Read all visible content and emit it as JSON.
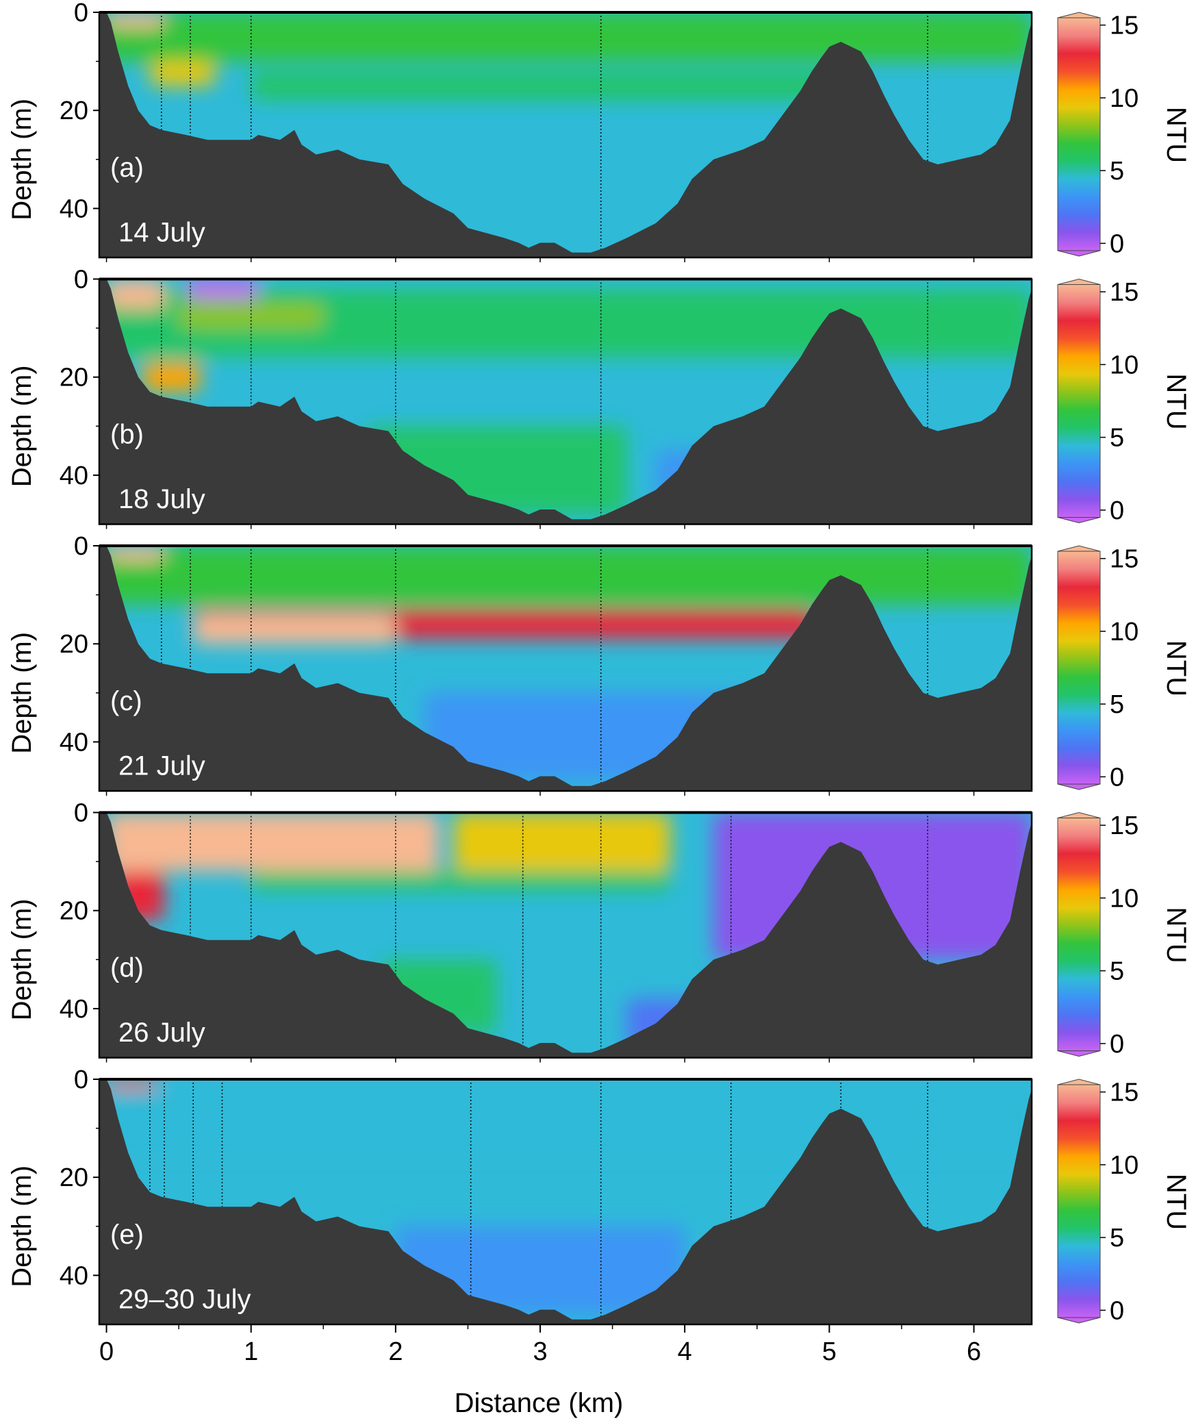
{
  "chart_data": {
    "type": "heatmap",
    "description_of_panels": "Five stacked depth–distance transect sections of turbidity with bathymetry",
    "xlabel": "Distance (km)",
    "ylabel": "Depth (m)",
    "colorbar_label": "NTU",
    "x_ticks": [
      0,
      1,
      2,
      3,
      4,
      5,
      6
    ],
    "y_ticks": [
      0,
      20,
      40
    ],
    "colorbar_ticks": [
      0,
      5,
      10,
      15
    ],
    "xlim": [
      -0.05,
      6.4
    ],
    "ylim": [
      0,
      50
    ],
    "clim": [
      -0.5,
      15.5
    ],
    "colormap": [
      "#c764f4",
      "#8a55ec",
      "#4f74f4",
      "#3c95f5",
      "#2fbad8",
      "#22c46a",
      "#33c43d",
      "#8fc41a",
      "#e8c80a",
      "#ffa500",
      "#f4502c",
      "#e8283a",
      "#f28080",
      "#f7b892"
    ],
    "bathymetry": {
      "distance_km": [
        0,
        0.03,
        0.08,
        0.15,
        0.22,
        0.3,
        0.38,
        0.55,
        0.7,
        0.85,
        1.0,
        1.05,
        1.2,
        1.3,
        1.35,
        1.45,
        1.6,
        1.75,
        1.95,
        2.05,
        2.2,
        2.4,
        2.5,
        2.75,
        2.85,
        2.92,
        3.0,
        3.1,
        3.22,
        3.35,
        3.45,
        3.6,
        3.8,
        3.95,
        4.05,
        4.2,
        4.4,
        4.55,
        4.7,
        4.8,
        4.88,
        4.95,
        5.0,
        5.08,
        5.15,
        5.22,
        5.3,
        5.38,
        5.45,
        5.55,
        5.65,
        5.75,
        5.9,
        6.05,
        6.15,
        6.25,
        6.32,
        6.38,
        6.4
      ],
      "depth_m": [
        0,
        2,
        8,
        15,
        20,
        23,
        24,
        25,
        26,
        26,
        26,
        25,
        26,
        24,
        27,
        29,
        28,
        30,
        31,
        35,
        38,
        41,
        44,
        46,
        47,
        48,
        47,
        47,
        49,
        49,
        48,
        46,
        43,
        39,
        34,
        30,
        28,
        26,
        20,
        16,
        12,
        9,
        7,
        6,
        7,
        8,
        12,
        17,
        21,
        26,
        30,
        31,
        30,
        29,
        27,
        22,
        12,
        4,
        2
      ]
    },
    "panels": [
      {
        "tag": "(a)",
        "date": "14 July",
        "background_ntu": 4.5,
        "profile_stations_km": [
          0.38,
          0.58,
          1.0,
          3.42,
          5.68
        ],
        "features": [
          {
            "x": [
              -0.05,
              6.4
            ],
            "depth": [
              0,
              10
            ],
            "ntu": 6.5
          },
          {
            "x": [
              0.0,
              0.4
            ],
            "depth": [
              0,
              3
            ],
            "ntu": 15
          },
          {
            "x": [
              0.3,
              0.75
            ],
            "depth": [
              10,
              15
            ],
            "ntu": 9
          },
          {
            "x": [
              1.0,
              5.0
            ],
            "depth": [
              12,
              18
            ],
            "ntu": 5.5
          }
        ]
      },
      {
        "tag": "(b)",
        "date": "18 July",
        "background_ntu": 4.5,
        "profile_stations_km": [
          0.38,
          0.58,
          1.0,
          2.0,
          3.42,
          5.68
        ],
        "features": [
          {
            "x": [
              -0.05,
              6.4
            ],
            "depth": [
              2,
              16
            ],
            "ntu": 6
          },
          {
            "x": [
              0.0,
              0.4
            ],
            "depth": [
              0,
              6
            ],
            "ntu": 15
          },
          {
            "x": [
              0.55,
              1.05
            ],
            "depth": [
              0,
              4
            ],
            "ntu": 0
          },
          {
            "x": [
              0.5,
              1.5
            ],
            "depth": [
              5,
              10
            ],
            "ntu": 8.5
          },
          {
            "x": [
              0.25,
              0.65
            ],
            "depth": [
              17,
              23
            ],
            "ntu": 10
          },
          {
            "x": [
              1.8,
              3.6
            ],
            "depth": [
              30,
              48
            ],
            "ntu": 6
          },
          {
            "x": [
              3.8,
              4.5
            ],
            "depth": [
              35,
              46
            ],
            "ntu": 3
          }
        ]
      },
      {
        "tag": "(c)",
        "date": "21 July",
        "background_ntu": 4,
        "profile_stations_km": [
          0.38,
          0.58,
          1.0,
          2.0,
          3.42,
          5.68
        ],
        "features": [
          {
            "x": [
              -0.05,
              6.4
            ],
            "depth": [
              0,
              12
            ],
            "ntu": 6.5
          },
          {
            "x": [
              0.0,
              0.4
            ],
            "depth": [
              0,
              3
            ],
            "ntu": 15
          },
          {
            "x": [
              0.6,
              4.9
            ],
            "depth": [
              13,
              19
            ],
            "ntu": 12.5
          },
          {
            "x": [
              0.6,
              2.0
            ],
            "depth": [
              14,
              20
            ],
            "ntu": 15
          },
          {
            "x": [
              2.2,
              4.5
            ],
            "depth": [
              30,
              48
            ],
            "ntu": 3.5
          }
        ]
      },
      {
        "tag": "(d)",
        "date": "26 July",
        "background_ntu": 4,
        "profile_stations_km": [
          0.58,
          1.0,
          2.0,
          2.88,
          3.42,
          4.32,
          5.68
        ],
        "features": [
          {
            "x": [
              0.0,
              2.3
            ],
            "depth": [
              0,
              12
            ],
            "ntu": 15
          },
          {
            "x": [
              0.05,
              0.4
            ],
            "depth": [
              12,
              22
            ],
            "ntu": 13
          },
          {
            "x": [
              2.4,
              3.9
            ],
            "depth": [
              0,
              12
            ],
            "ntu": 9.5
          },
          {
            "x": [
              1.0,
              3.9
            ],
            "depth": [
              12,
              16
            ],
            "ntu": 6
          },
          {
            "x": [
              1.9,
              2.7
            ],
            "depth": [
              30,
              45
            ],
            "ntu": 6
          },
          {
            "x": [
              4.2,
              6.4
            ],
            "depth": [
              0,
              30
            ],
            "ntu": 1
          },
          {
            "x": [
              3.6,
              4.3
            ],
            "depth": [
              38,
              48
            ],
            "ntu": 2.5
          }
        ]
      },
      {
        "tag": "(e)",
        "date": "29–30 July",
        "background_ntu": 4,
        "profile_stations_km": [
          0.3,
          0.4,
          0.6,
          0.8,
          2.52,
          3.42,
          4.32,
          5.08,
          5.68
        ],
        "features": [
          {
            "x": [
              0.0,
              0.35
            ],
            "depth": [
              0,
              2
            ],
            "ntu": 12
          },
          {
            "x": [
              -0.05,
              6.4
            ],
            "depth": [
              2,
              16
            ],
            "ntu": 4.5
          },
          {
            "x": [
              2.0,
              4.0
            ],
            "depth": [
              30,
              48
            ],
            "ntu": 3.5
          }
        ]
      }
    ]
  }
}
